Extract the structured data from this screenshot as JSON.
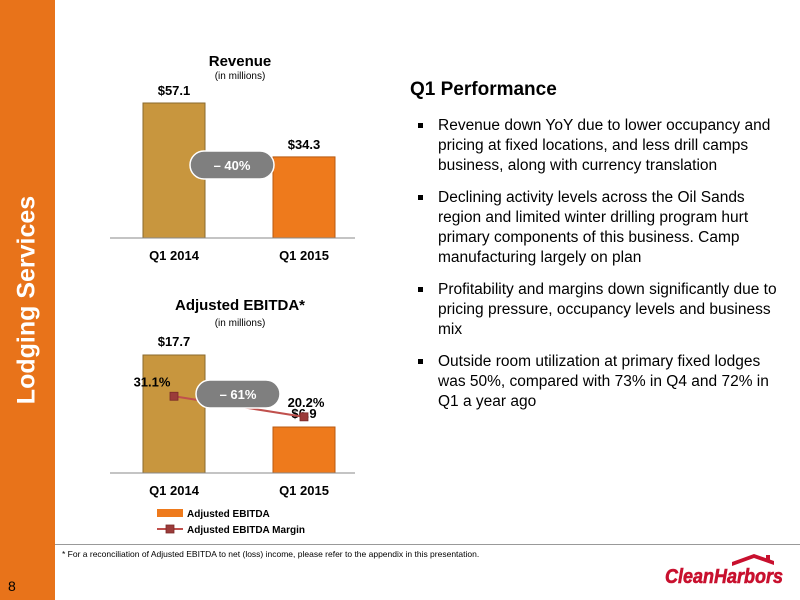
{
  "slide": {
    "section_title": "Lodging Services",
    "page_number": "8",
    "footnote": "* For a reconciliation of Adjusted EBITDA to net (loss) income, please refer to the appendix in this presentation.",
    "logo_text": "CleanHarbors",
    "colors": {
      "accent": "#e8731a",
      "tan_bar": "#c8963e",
      "orange_bar": "#ee7a1c",
      "margin_line": "#c0504d",
      "badge": "#7f7f7f"
    }
  },
  "performance": {
    "title": "Q1 Performance",
    "bullets": [
      "Revenue down YoY due to lower occupancy and pricing at fixed locations, and less drill camps business, along with currency translation",
      "Declining activity levels across the Oil Sands region and limited winter drilling program hurt primary components of this business.  Camp manufacturing largely on plan",
      "Profitability and margins down significantly due to pricing pressure, occupancy levels and business mix",
      "Outside room utilization at primary fixed lodges was 50%, compared with 73% in Q4 and 72% in Q1 a year ago"
    ]
  },
  "chart_data": [
    {
      "type": "bar",
      "title": "Revenue",
      "subtitle": "(in millions)",
      "categories": [
        "Q1 2014",
        "Q1 2015"
      ],
      "values": [
        57.1,
        34.3
      ],
      "value_labels": [
        "$57.1",
        "$34.3"
      ],
      "change_label": "– 40%",
      "ylim": [
        0,
        60
      ],
      "grid": false
    },
    {
      "type": "bar",
      "title": "Adjusted EBITDA*",
      "subtitle": "(in millions)",
      "categories": [
        "Q1 2014",
        "Q1 2015"
      ],
      "series": [
        {
          "name": "Adjusted EBITDA",
          "type": "bar",
          "values": [
            17.7,
            6.9
          ],
          "value_labels": [
            "$17.7",
            "$6.9"
          ]
        },
        {
          "name": "Adjusted EBITDA Margin",
          "type": "line",
          "values": [
            31.1,
            20.2
          ],
          "value_labels": [
            "31.1%",
            "20.2%"
          ]
        }
      ],
      "change_label": "– 61%",
      "ylim": [
        0,
        19
      ],
      "legend_position": "bottom-left",
      "grid": false
    }
  ]
}
